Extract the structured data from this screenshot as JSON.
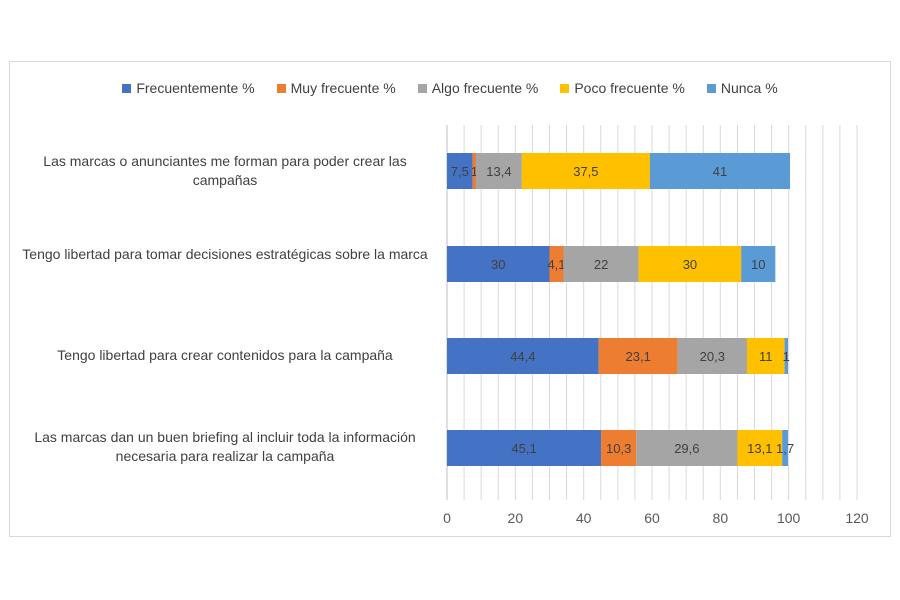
{
  "chart_data": {
    "type": "bar",
    "orientation": "horizontal",
    "stacked": true,
    "title": "",
    "xlabel": "",
    "ylabel": "",
    "xlim": [
      0,
      120
    ],
    "x_ticks": [
      "0",
      "20",
      "40",
      "60",
      "80",
      "100",
      "120"
    ],
    "grid": "vertical",
    "legend_position": "top",
    "categories": [
      "Las marcas o anunciantes me forman para poder crear las campañas",
      "Tengo libertad para tomar decisiones estratégicas sobre la marca",
      "Tengo libertad para crear contenidos para la campaña",
      "Las marcas dan un buen briefing al incluir toda la información necesaria para realizar la campaña"
    ],
    "series": [
      {
        "name": "Frecuentemente %",
        "color": "#4472c4",
        "values": [
          7.5,
          30,
          44.4,
          45.1
        ],
        "labels": [
          "7,5",
          "30",
          "44,4",
          "45,1"
        ]
      },
      {
        "name": "Muy frecuente %",
        "color": "#ed7d31",
        "values": [
          1,
          4.1,
          23.1,
          10.3
        ],
        "labels": [
          "1",
          "4,1",
          "23,1",
          "10,3"
        ]
      },
      {
        "name": "Algo frecuente %",
        "color": "#a5a5a5",
        "values": [
          13.4,
          22,
          20.3,
          29.6
        ],
        "labels": [
          "13,4",
          "22",
          "20,3",
          "29,6"
        ]
      },
      {
        "name": "Poco frecuente %",
        "color": "#ffc000",
        "values": [
          37.5,
          30,
          11,
          13.1
        ],
        "labels": [
          "37,5",
          "30",
          "11",
          "13,1"
        ]
      },
      {
        "name": "Nunca %",
        "color": "#5b9bd5",
        "values": [
          41,
          10,
          1,
          1.7
        ],
        "labels": [
          "41",
          "10",
          "1",
          "1,7"
        ]
      }
    ]
  }
}
